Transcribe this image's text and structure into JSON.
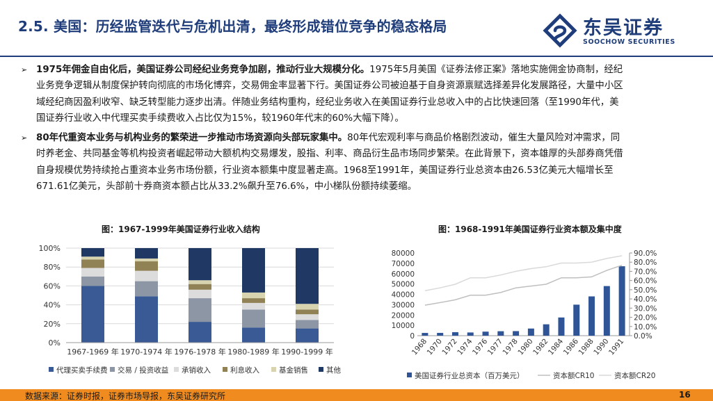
{
  "header": {
    "title": "2.5. 美国：历经监管迭代与危机出清，最终形成错位竞争的稳态格局",
    "logo_cn": "东吴证券",
    "logo_en": "SOOCHOW SECURITIES",
    "brand_color": "#1f3d7a"
  },
  "bullets": [
    {
      "icon": "arrow-right-icon",
      "lead": "1975年佣金自由化后，美国证券公司经纪业务竞争加剧，推动行业大规模分化。",
      "lines": [
        "1975年5月美国《证券法修正案》落地实施佣金协商制，经纪",
        "业务竞争逻辑从制度保护转向彻底的市场化博弈，交易佣金率显著下行。美国证券公司被迫基于自身资源禀赋选择差异化发展路径，大量中小区",
        "域经纪商因盈利收窄、缺乏转型能力逐步出清。伴随业务结构重构，经纪业务收入在美国证券行业总收入中的占比快速回落（至1990年代，美",
        "国证券行业收入中代理买卖手续费收入占比仅为15%，较1960年代末的60%大幅下降）。"
      ]
    },
    {
      "icon": "arrow-right-icon",
      "lead": "80年代重资本业务与机构业务的繁荣进一步推动市场资源向头部玩家集中。",
      "lines": [
        "80年代宏观利率与商品价格剧烈波动，催生大量风险对冲需求，同",
        "时养老金、共同基金等机构投资者崛起带动大额机构交易爆发，股指、利率、商品衍生品市场同步繁荣。在此背景下，资本雄厚的头部券商凭借",
        "自身规模优势持续抢占重资本业务市场份额，行业资本额集中度显著走高。1968至1991年，美国证券行业总资本由26.53亿美元大幅增长至",
        "671.61亿美元，头部前十券商资本额占比从33.2%飙升至76.6%，中小梯队份额持续萎缩。"
      ]
    }
  ],
  "figure_left_title": "图：1967-1999年美国证券行业收入结构",
  "figure_right_title": "图：1968-1991年美国证券行业资本额及集中度",
  "chart_data": [
    {
      "type": "bar",
      "stacked": true,
      "categories": [
        "1967-1969 年",
        "1970-1974 年",
        "1976-1978 年",
        "1980-1989 年",
        "1990-1999 年"
      ],
      "yticks": [
        "0%",
        "20%",
        "40%",
        "60%",
        "80%",
        "100%"
      ],
      "ylim": [
        0,
        100
      ],
      "legend_position": "bottom",
      "series": [
        {
          "name": "代理买卖手续费",
          "color": "#3a5a96",
          "values": [
            60,
            49,
            22,
            16,
            15
          ]
        },
        {
          "name": "交易 / 投资收益",
          "color": "#8c96a5",
          "values": [
            10,
            16,
            25,
            19,
            9
          ]
        },
        {
          "name": "承销收入",
          "color": "#dcdcdc",
          "values": [
            9,
            11,
            9,
            7,
            6
          ]
        },
        {
          "name": "利息收入",
          "color": "#918256",
          "values": [
            9,
            10,
            6,
            5,
            5
          ]
        },
        {
          "name": "基金销售",
          "color": "#d9d4b0",
          "values": [
            3,
            3,
            4,
            6,
            6
          ]
        },
        {
          "name": "其他收入",
          "color": "#1f3864",
          "values": [
            9,
            11,
            34,
            47,
            59
          ]
        }
      ]
    },
    {
      "type": "bar",
      "categories": [
        "1968",
        "1970",
        "1972",
        "1974",
        "1976",
        "1977",
        "1978",
        "1980",
        "1982",
        "1984",
        "1986",
        "1988",
        "1990",
        "1991"
      ],
      "yticks_left": [
        "0",
        "10000",
        "20000",
        "30000",
        "40000",
        "50000",
        "60000",
        "70000",
        "80000"
      ],
      "ylim_left": [
        0,
        80000
      ],
      "yticks_right": [
        "0.0%",
        "10.0%",
        "20.0%",
        "30.0%",
        "40.0%",
        "50.0%",
        "60.0%",
        "70.0%",
        "80.0%",
        "90.0%"
      ],
      "ylim_right": [
        0,
        90
      ],
      "legend_position": "bottom",
      "series": [
        {
          "name": "美国证券行业总资本（百万美元）",
          "kind": "bar",
          "axis": "left",
          "color": "#2f5597",
          "values": [
            2653,
            2700,
            3400,
            3100,
            3900,
            4300,
            4400,
            6900,
            11000,
            17600,
            30000,
            38000,
            48000,
            67161
          ]
        },
        {
          "name": "资本额CR10",
          "kind": "line",
          "axis": "right",
          "color": "#bfbfbf",
          "values": [
            33.2,
            36,
            39,
            44,
            44,
            47,
            52,
            54,
            56,
            63,
            63,
            64,
            71,
            76.6
          ]
        },
        {
          "name": "资本额CR20",
          "kind": "line",
          "axis": "right",
          "color": "#d9d9d9",
          "values": [
            49,
            52,
            56,
            63,
            63,
            66,
            70,
            73,
            75,
            79,
            79,
            80,
            84,
            87
          ]
        }
      ]
    }
  ],
  "footer": {
    "source": "数据来源：证券时报，证券市场导报，东吴证券研究所",
    "page": "16",
    "bar_color": "#f08c1f"
  }
}
